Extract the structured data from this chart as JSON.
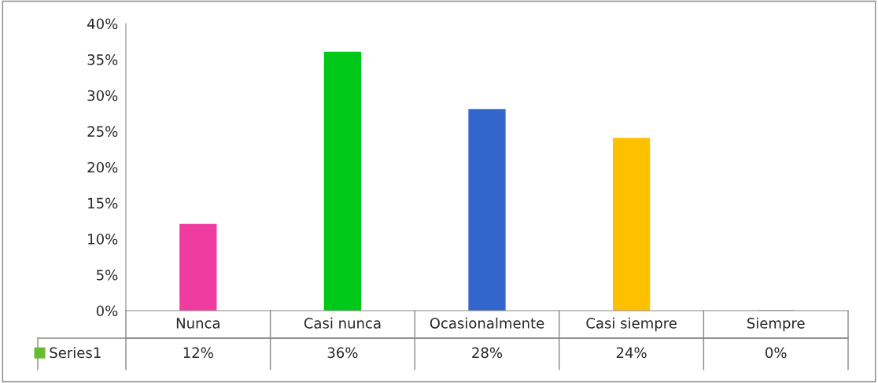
{
  "chart_data": {
    "type": "bar",
    "categories": [
      "Nunca",
      "Casi nunca",
      "Ocasionalmente",
      "Casi siempre",
      "Siempre"
    ],
    "series": [
      {
        "name": "Series1",
        "color": "#66bb33",
        "colors": [
          "#f03ca0",
          "#00c818",
          "#3366cc",
          "#ffc000",
          "#999999"
        ],
        "values": [
          12,
          36,
          28,
          24,
          0
        ],
        "value_labels": [
          "12%",
          "36%",
          "28%",
          "24%",
          "0%"
        ]
      }
    ],
    "ylim": [
      0,
      40
    ],
    "yticks": [
      {
        "value": 0,
        "label": "0%"
      },
      {
        "value": 5,
        "label": "5%"
      },
      {
        "value": 10,
        "label": "10%"
      },
      {
        "value": 15,
        "label": "15%"
      },
      {
        "value": 20,
        "label": "20%"
      },
      {
        "value": 25,
        "label": "25%"
      },
      {
        "value": 30,
        "label": "30%"
      },
      {
        "value": 35,
        "label": "35%"
      },
      {
        "value": 40,
        "label": "40%"
      }
    ],
    "grid": false,
    "legend": "bottom left"
  }
}
